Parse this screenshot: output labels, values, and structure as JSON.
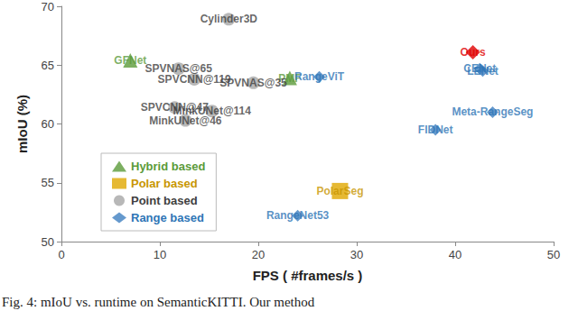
{
  "chart_data": {
    "type": "scatter",
    "caption": "Fig. 4: mIoU vs. runtime on SemanticKITTI. Our method",
    "xlabel": "FPS ( #frames/s )",
    "ylabel": "mIoU (%)",
    "xlim": [
      0,
      50
    ],
    "xticks": [
      0,
      10,
      20,
      30,
      40,
      50
    ],
    "ylim": [
      50,
      70
    ],
    "yticks": [
      50,
      55,
      60,
      65,
      70
    ],
    "grid": false,
    "legend": "lower left",
    "series": [
      {
        "name": "Hybrid based",
        "color": "#5b9b3a",
        "marker": "triangle",
        "labels": [
          "GFNet",
          "PMF"
        ],
        "x": [
          7,
          23.2
        ],
        "y": [
          65.4,
          63.9
        ]
      },
      {
        "name": "Polar based",
        "color": "#e0a800",
        "marker": "square",
        "labels": [
          "PolarSeg"
        ],
        "x": [
          28.3
        ],
        "y": [
          54.3
        ]
      },
      {
        "name": "Point based",
        "color": "#a6a6a6",
        "marker": "circle",
        "labels": [
          "Cylinder3D",
          "SPVNAS@65",
          "SPVNAS@35",
          "SPVCNN@119",
          "SPVCNN@47",
          "MinkUNet@114",
          "MinkUNet@46"
        ],
        "x": [
          17,
          11.9,
          19.5,
          13.5,
          11.5,
          15.3,
          12.6
        ],
        "y": [
          68.9,
          64.7,
          63.5,
          63.8,
          61.4,
          61.1,
          60.3
        ]
      },
      {
        "name": "Range based",
        "color": "#3f7fc0",
        "marker": "diamond",
        "labels": [
          "RangeViT",
          "CENet",
          "LENet",
          "Meta-RangeSeg",
          "FIDNet",
          "RangeNet53",
          "Ours"
        ],
        "x": [
          26.2,
          42.5,
          42.8,
          43.8,
          38,
          24,
          41.8
        ],
        "y": [
          64.0,
          64.7,
          64.5,
          61.0,
          59.5,
          52.2,
          66.1
        ],
        "colors": [
          "#3f7fc0",
          "#3f7fc0",
          "#3f7fc0",
          "#3f7fc0",
          "#3f7fc0",
          "#3f7fc0",
          "#e00000"
        ]
      }
    ]
  }
}
